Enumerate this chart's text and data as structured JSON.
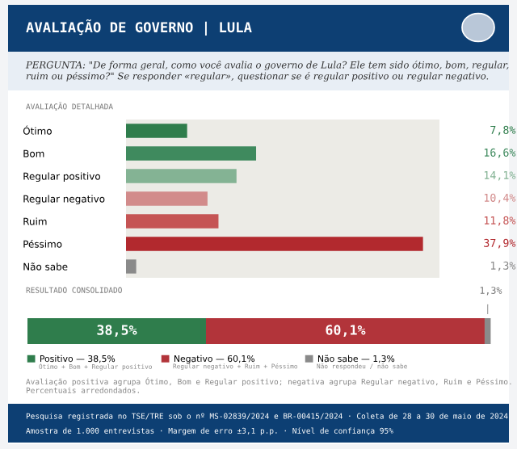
{
  "chart_data": [
    {
      "type": "bar",
      "orientation": "horizontal",
      "title": "AVALIAÇÃO DE GOVERNO | LULA",
      "subtitle": "PERGUNTA: \"De forma geral, como você avalia o governo de Lula? Ele tem sido ótimo, bom, regular, ruim ou péssimo?\" Se responder «regular», questionar se é regular positivo ou regular negativo.",
      "annotations": [
        "AVALIAÇÃO DETALHADA"
      ],
      "categories": [
        "Ótimo",
        "Bom",
        "Regular positivo",
        "Regular negativo",
        "Ruim",
        "Péssimo",
        "Não sabe"
      ],
      "values": [
        7.8,
        16.6,
        14.1,
        10.4,
        11.8,
        37.9,
        1.3
      ],
      "colors": [
        "#2f7d4c",
        "#3f8a5e",
        "#84b394",
        "#d28b8b",
        "#c55454",
        "#b2292e",
        "#8a8a8a"
      ],
      "value_labels": [
        "7,8%",
        "16,6%",
        "14,1%",
        "10,4%",
        "11,8%",
        "37,9%",
        "1,3%"
      ],
      "xlim": [
        0,
        40
      ],
      "tick_labels": "y",
      "grid": false
    },
    {
      "type": "bar",
      "orientation": "horizontal",
      "stacked": true,
      "title": "RESULTADO CONSOLIDADO",
      "categories": [
        null
      ],
      "series": [
        {
          "name": "Positivo — 38,5%",
          "color": "#2f7d4c",
          "values": [
            38.5
          ],
          "value_labels": [
            "38,5%"
          ]
        },
        {
          "name": "Negativo — 60,1%",
          "color": "#b2343a",
          "values": [
            60.1
          ],
          "value_labels": [
            "60,1%"
          ]
        },
        {
          "name": "Não sabe — 1,3%",
          "color": "#8a8a8a",
          "values": [
            1.3
          ],
          "value_labels": [
            "1,3%"
          ]
        }
      ],
      "annotations": [
        "Ótimo + Bom + Regular positivo",
        "Regular negativo + Ruim + Péssimo",
        "Não respondeu / não sabe",
        "Avaliação positiva agrupa Ótimo, Bom e Regular positivo; negativa agrupa Regular negativo, Ruim e Péssimo. Percentuais arredondados.",
        "Pesquisa registrada no TSE/TRE sob o nº MS-02839/2024 e BR-00415/2024 · Coleta de 28 a 30 de maio de 2024",
        "Amostra de 1.000 entrevistas · Margem de erro ±3,1 p.p. · Nível de confiança 95%"
      ],
      "xlim": [
        0,
        100
      ],
      "tick_labels": false,
      "grid": false,
      "legend": "bottom"
    }
  ]
}
